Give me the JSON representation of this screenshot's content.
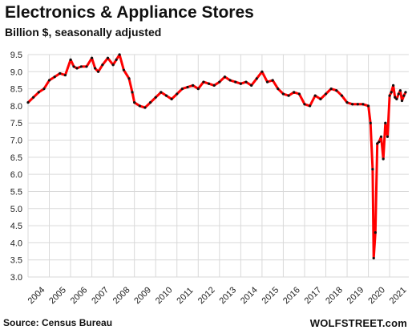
{
  "chart_data": {
    "type": "line",
    "title": "Electronics & Appliance Stores",
    "subtitle": "Billion $, seasonally adjusted",
    "source": "Source: Census Bureau",
    "brand": "WOLFSTREET.com",
    "ylim": [
      3.0,
      9.5
    ],
    "yticks": [
      "3.0",
      "3.5",
      "4.0",
      "4.5",
      "5.0",
      "5.5",
      "6.0",
      "6.5",
      "7.0",
      "7.5",
      "8.0",
      "8.5",
      "9.0",
      "9.5"
    ],
    "xticks": [
      "2004",
      "2005",
      "2006",
      "2007",
      "2008",
      "2009",
      "2010",
      "2011",
      "2012",
      "2013",
      "2014",
      "2015",
      "2016",
      "2017",
      "2018",
      "2019",
      "2020",
      "2021"
    ],
    "grid": true,
    "line_color": "#ff0000",
    "point_color": "#111111",
    "series": [
      {
        "x": [
          2004.0,
          2004.25,
          2004.5,
          2004.75,
          2005.0,
          2005.25,
          2005.5,
          2005.75,
          2006.0,
          2006.15,
          2006.3,
          2006.5,
          2006.75,
          2007.0,
          2007.15,
          2007.3,
          2007.5,
          2007.75,
          2008.0,
          2008.15,
          2008.3,
          2008.5,
          2008.75,
          2008.9,
          2009.0,
          2009.25,
          2009.5,
          2009.75,
          2010.0,
          2010.25,
          2010.5,
          2010.75,
          2011.0,
          2011.25,
          2011.5,
          2011.75,
          2012.0,
          2012.25,
          2012.5,
          2012.75,
          2013.0,
          2013.25,
          2013.5,
          2013.75,
          2014.0,
          2014.25,
          2014.5,
          2014.75,
          2015.0,
          2015.25,
          2015.5,
          2015.75,
          2016.0,
          2016.25,
          2016.5,
          2016.75,
          2017.0,
          2017.25,
          2017.5,
          2017.75,
          2018.0,
          2018.25,
          2018.5,
          2018.75,
          2019.0,
          2019.25,
          2019.5,
          2019.75,
          2020.0,
          2020.1,
          2020.2,
          2020.25,
          2020.33,
          2020.42,
          2020.5,
          2020.6,
          2020.7,
          2020.8,
          2020.9,
          2021.0,
          2021.08,
          2021.17,
          2021.25,
          2021.33,
          2021.42,
          2021.5,
          2021.58,
          2021.67,
          2021.75
        ],
        "values": [
          8.1,
          8.25,
          8.4,
          8.5,
          8.75,
          8.85,
          8.95,
          8.9,
          9.35,
          9.15,
          9.1,
          9.15,
          9.15,
          9.4,
          9.1,
          9.0,
          9.2,
          9.4,
          9.2,
          9.35,
          9.5,
          9.05,
          8.8,
          8.4,
          8.1,
          8.0,
          7.95,
          8.1,
          8.25,
          8.4,
          8.3,
          8.2,
          8.35,
          8.5,
          8.55,
          8.6,
          8.5,
          8.7,
          8.65,
          8.6,
          8.7,
          8.85,
          8.75,
          8.7,
          8.65,
          8.7,
          8.6,
          8.8,
          9.0,
          8.7,
          8.75,
          8.5,
          8.35,
          8.3,
          8.4,
          8.35,
          8.05,
          8.0,
          8.3,
          8.2,
          8.35,
          8.5,
          8.45,
          8.3,
          8.1,
          8.05,
          8.05,
          8.05,
          8.0,
          7.5,
          6.15,
          3.55,
          4.3,
          6.9,
          6.95,
          7.1,
          6.45,
          7.5,
          7.1,
          8.3,
          8.4,
          8.6,
          8.25,
          8.2,
          8.35,
          8.45,
          8.15,
          8.3,
          8.4
        ]
      }
    ]
  }
}
